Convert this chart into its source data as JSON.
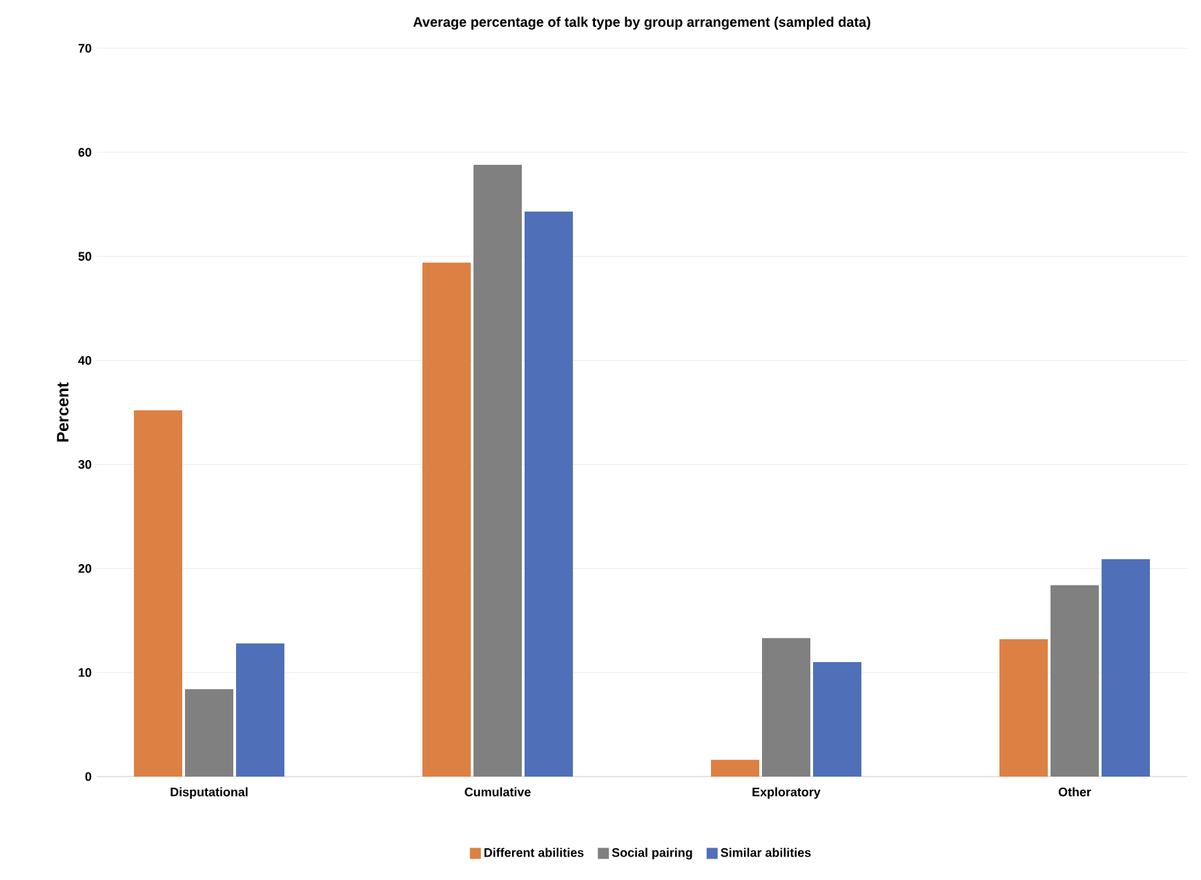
{
  "chart_data": {
    "type": "bar",
    "title": "Average percentage of talk type by group arrangement (sampled data)",
    "ylabel": "Percent",
    "categories": [
      "Disputational",
      "Cumulative",
      "Exploratory",
      "Other"
    ],
    "series": [
      {
        "name": "Different abilities",
        "color": "#dd8043",
        "values": [
          35.2,
          49.4,
          1.6,
          13.2
        ]
      },
      {
        "name": "Social pairing",
        "color": "#808080",
        "values": [
          8.4,
          58.8,
          13.3,
          18.4
        ]
      },
      {
        "name": "Similar abilities",
        "color": "#4f70b8",
        "values": [
          12.8,
          54.3,
          11.0,
          20.9
        ]
      }
    ],
    "ylim": [
      0,
      70
    ],
    "yticks": [
      0,
      10,
      20,
      30,
      40,
      50,
      60,
      70
    ],
    "grid": "y",
    "legend": "bottom"
  }
}
